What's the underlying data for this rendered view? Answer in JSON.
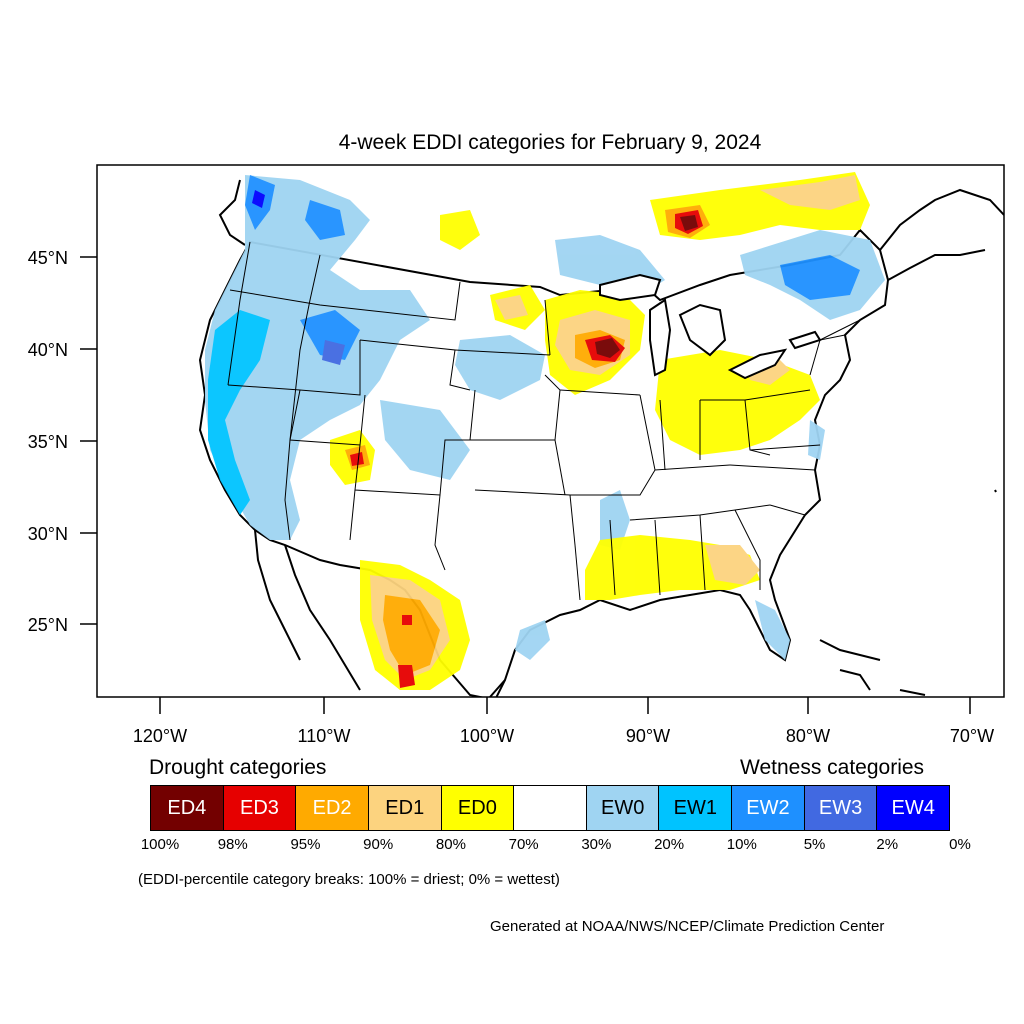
{
  "title": "4-week EDDI categories for February 9, 2024",
  "lat_labels": [
    "45°N",
    "40°N",
    "35°N",
    "30°N",
    "25°N"
  ],
  "lon_labels": [
    "120°W",
    "110°W",
    "100°W",
    "90°W",
    "80°W",
    "70°W"
  ],
  "legend": {
    "drought_heading": "Drought categories",
    "wetness_heading": "Wetness categories",
    "categories": [
      {
        "label": "ED4",
        "color": "#730000"
      },
      {
        "label": "ED3",
        "color": "#e60000"
      },
      {
        "label": "ED2",
        "color": "#ffaa00"
      },
      {
        "label": "ED1",
        "color": "#fcd37f"
      },
      {
        "label": "ED0",
        "color": "#ffff00"
      },
      {
        "label": "",
        "color": "#ffffff"
      },
      {
        "label": "EW0",
        "color": "#9fd4f2"
      },
      {
        "label": "EW1",
        "color": "#00c3ff"
      },
      {
        "label": "EW2",
        "color": "#1e90ff"
      },
      {
        "label": "EW3",
        "color": "#4169e1"
      },
      {
        "label": "EW4",
        "color": "#0000ff"
      }
    ],
    "percent_breaks": [
      "100%",
      "98%",
      "95%",
      "90%",
      "80%",
      "70%",
      "30%",
      "20%",
      "10%",
      "5%",
      "2%",
      "0%"
    ]
  },
  "note": "(EDDI-percentile category breaks: 100% = driest; 0% = wettest)",
  "credit": "Generated at NOAA/NWS/NCEP/Climate Prediction Center"
}
